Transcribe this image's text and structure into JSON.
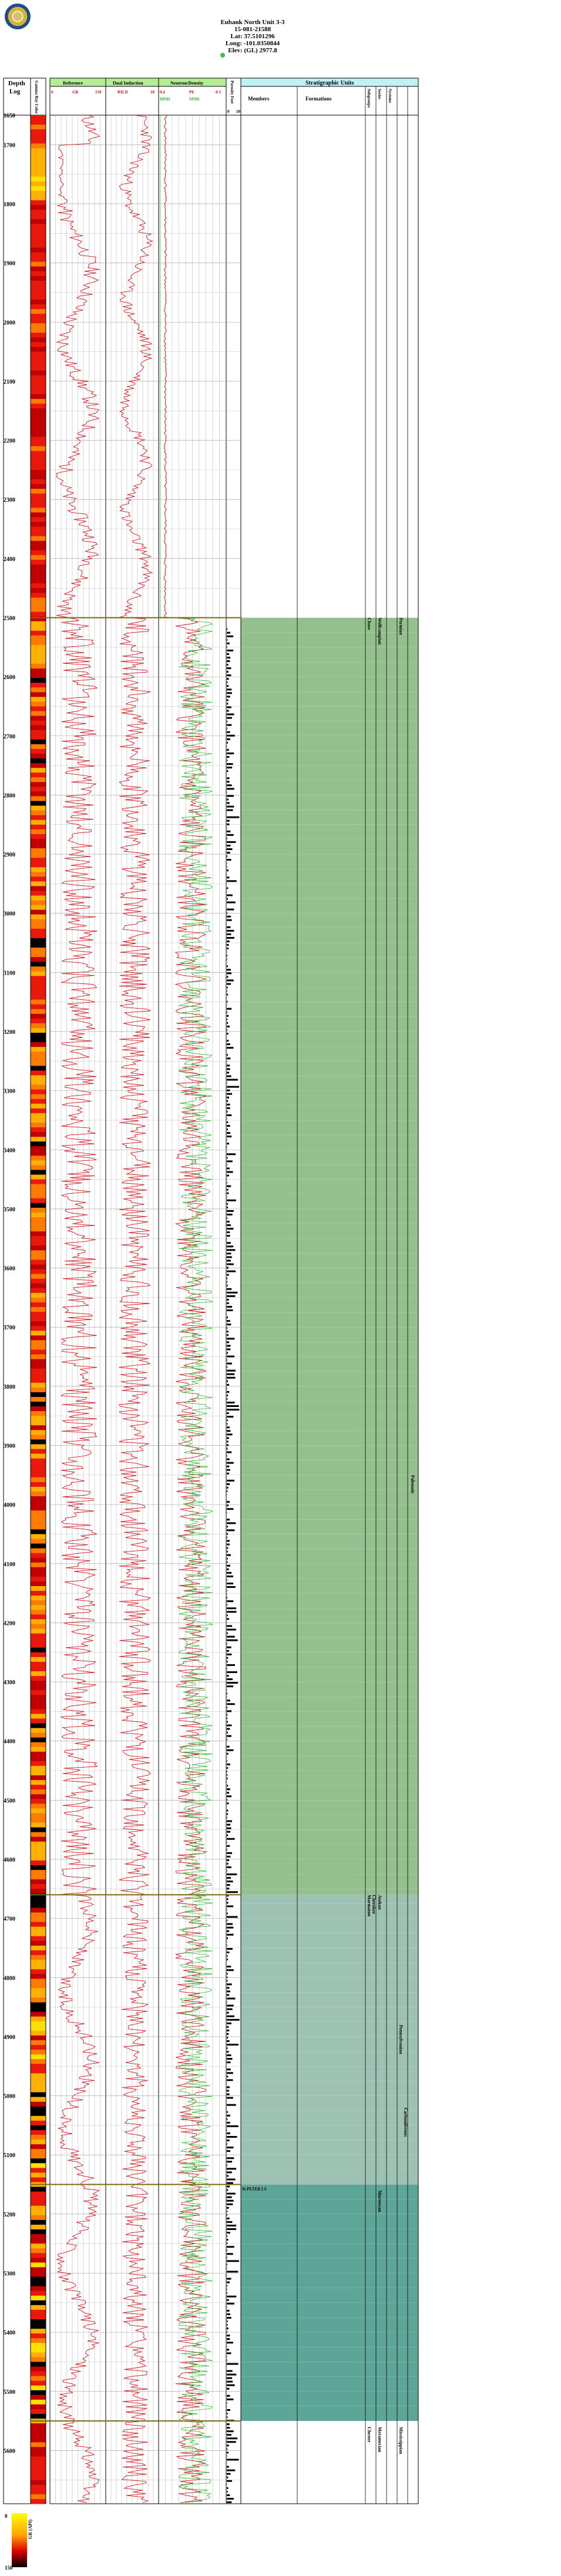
{
  "header": {
    "well_name": "Eubank North Unit 3-3",
    "api": "15-081-21588",
    "lat": "Lat: 37.5101296",
    "long": "Long: -101.0350844",
    "elev": "Elev: (GL) 2977.8"
  },
  "tracks": {
    "depth": {
      "title1": "Depth",
      "title2": "Log"
    },
    "gamma_color": {
      "label": "Gamma Ray Color"
    },
    "resistance": {
      "title": "Reference",
      "scale_left": "0",
      "scale_mid": "GR",
      "scale_right": "150"
    },
    "induction": {
      "title": "Dual Induction",
      "scale_left": "RILD",
      "scale_right": "10"
    },
    "neutron": {
      "title": "Neutron/Density",
      "pe_label": "PE",
      "scale_left": "0.4",
      "scale_right": "-0.1",
      "scale2": "DPHI",
      "scale3": "NPHI"
    },
    "porosity": {
      "label": "Porosity Feet",
      "scale_left": "0",
      "scale_right": "10"
    },
    "strat": {
      "title": "Stratigraphic Units",
      "members": "Members",
      "formations": "Formations",
      "groups": "Subgroups",
      "series": "Series",
      "eras": "Systems"
    }
  },
  "depths": [
    "1650",
    "1700",
    "1800",
    "1900",
    "2000",
    "2100",
    "2200",
    "2300",
    "2400",
    "2500",
    "2600",
    "2700",
    "2800",
    "2900",
    "3000",
    "3100",
    "3200",
    "3300",
    "3400",
    "3500",
    "3600",
    "3700",
    "3800",
    "3900",
    "4000",
    "4100",
    "4200",
    "4300",
    "4400",
    "4500",
    "4600",
    "4700",
    "4800",
    "4900",
    "5000",
    "5100",
    "5200",
    "5300",
    "5400",
    "5500",
    "5600"
  ],
  "strat_units": {
    "chase": "Chase",
    "wolfcampian": "Wolfcampian",
    "permian": "Permian",
    "paleozoic": "Paleozoic",
    "atokan": "Atokan",
    "morrowan": "Morrowan",
    "pennsylvanian": "Pennsylvanian",
    "carboniferous": "Carboniferous",
    "chester": "Chester",
    "meramecian": "Meramecian",
    "mississippian": "Mississippian",
    "st_peter": "St PETER LS",
    "marmaton": "Marmaton",
    "cherokee": "Cherokee"
  },
  "legend": {
    "label": "GR (API)",
    "min": "0",
    "max": "150"
  },
  "colors": {
    "header_green": "#b6ec94",
    "strat_header": "#bff2f7",
    "permian_zone": "#93c08d",
    "penn_zone": "#9dc2b4",
    "miss_zone": "#5da597",
    "curve_red": "#d0141e",
    "curve_green": "#2bb52b",
    "grid": "#9a9a9a",
    "boundary": "#7a6a10"
  }
}
